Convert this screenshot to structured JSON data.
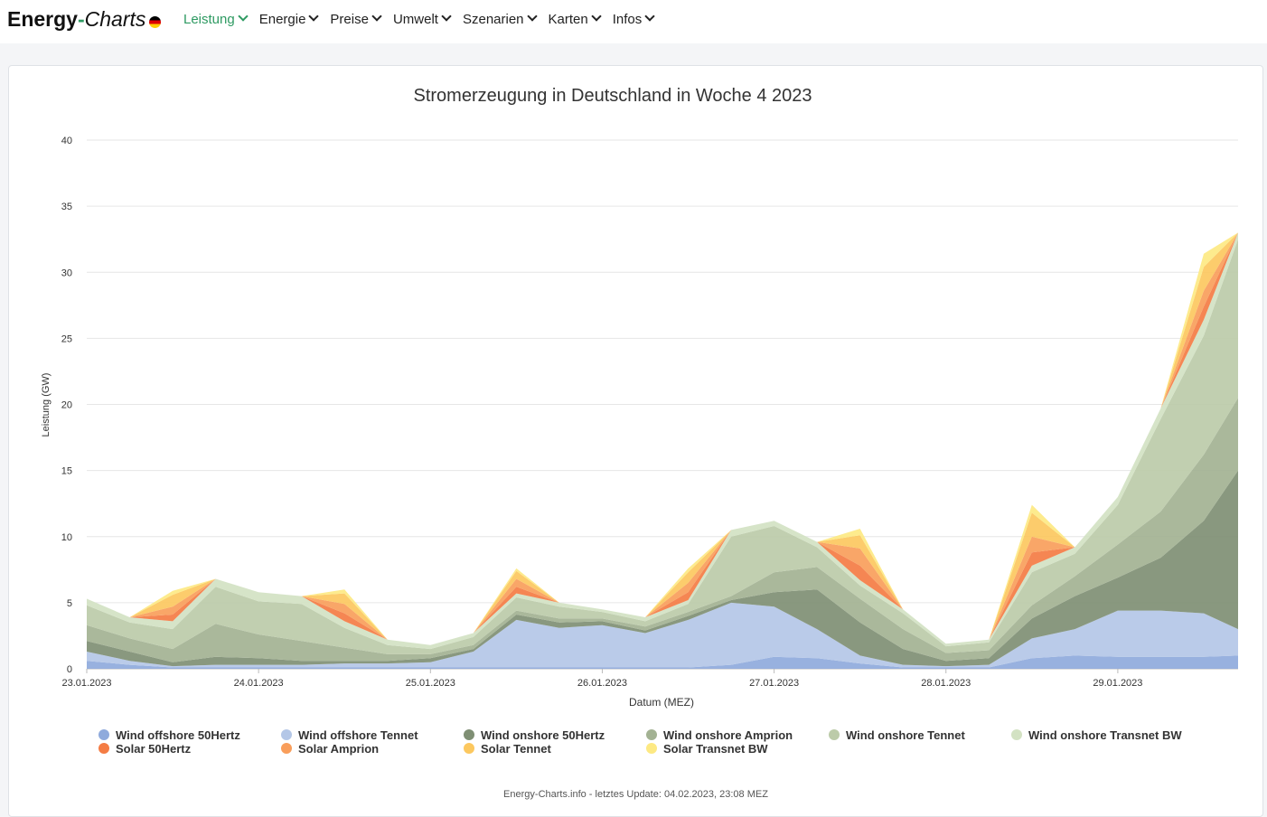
{
  "header": {
    "logo_main": "Energy",
    "logo_dash": "-",
    "logo_italic": "Charts",
    "nav": [
      {
        "label": "Leistung"
      },
      {
        "label": "Energie"
      },
      {
        "label": "Preise"
      },
      {
        "label": "Umwelt"
      },
      {
        "label": "Szenarien"
      },
      {
        "label": "Karten"
      },
      {
        "label": "Infos"
      }
    ]
  },
  "footer": "Energy-Charts.info - letztes Update: 04.02.2023, 23:08 MEZ",
  "chart_data": {
    "type": "area",
    "stacked": true,
    "title": "Stromerzeugung in Deutschland in Woche 4 2023",
    "xlabel": "Datum (MEZ)",
    "ylabel": "Leistung (GW)",
    "ylim": [
      0,
      40
    ],
    "yticks": [
      0,
      5,
      10,
      15,
      20,
      25,
      30,
      35,
      40
    ],
    "xlim_days": [
      0,
      6.7
    ],
    "xticks": [
      {
        "day": 0,
        "label": "23.01.2023"
      },
      {
        "day": 1,
        "label": "24.01.2023"
      },
      {
        "day": 2,
        "label": "25.01.2023"
      },
      {
        "day": 3,
        "label": "26.01.2023"
      },
      {
        "day": 4,
        "label": "27.01.2023"
      },
      {
        "day": 5,
        "label": "28.01.2023"
      },
      {
        "day": 6,
        "label": "29.01.2023"
      }
    ],
    "x": [
      0,
      0.25,
      0.5,
      0.75,
      1,
      1.25,
      1.5,
      1.75,
      2,
      2.25,
      2.5,
      2.75,
      3,
      3.25,
      3.5,
      3.75,
      4,
      4.25,
      4.5,
      4.75,
      5,
      5.25,
      5.5,
      5.75,
      6,
      6.25,
      6.5,
      6.7
    ],
    "series": [
      {
        "name": "Wind offshore 50Hertz",
        "color": "#8faadc",
        "values": [
          0.6,
          0.3,
          0.1,
          0.1,
          0.1,
          0.1,
          0.1,
          0.1,
          0.1,
          0.1,
          0.1,
          0.1,
          0.1,
          0.1,
          0.1,
          0.3,
          0.9,
          0.8,
          0.4,
          0.1,
          0.1,
          0.1,
          0.8,
          1.0,
          0.9,
          0.9,
          0.9,
          1.0
        ]
      },
      {
        "name": "Wind offshore Tennet",
        "color": "#b4c7e7",
        "values": [
          0.7,
          0.3,
          0.1,
          0.2,
          0.2,
          0.2,
          0.3,
          0.3,
          0.4,
          1.2,
          3.6,
          3.0,
          3.2,
          2.6,
          3.6,
          4.7,
          3.8,
          2.2,
          0.6,
          0.2,
          0.1,
          0.2,
          1.5,
          2.0,
          3.5,
          3.5,
          3.3,
          2.0
        ]
      },
      {
        "name": "Wind onshore 50Hertz",
        "color": "#7f8f74",
        "values": [
          0.8,
          0.7,
          0.3,
          0.6,
          0.5,
          0.3,
          0.2,
          0.2,
          0.3,
          0.2,
          0.4,
          0.4,
          0.3,
          0.2,
          0.3,
          0.2,
          1.1,
          3.0,
          2.5,
          1.2,
          0.4,
          0.5,
          1.5,
          2.5,
          2.5,
          4.0,
          7.0,
          12.0
        ]
      },
      {
        "name": "Wind onshore Amprion",
        "color": "#a3b293",
        "values": [
          1.2,
          1.0,
          1.0,
          2.5,
          1.8,
          1.5,
          1.0,
          0.5,
          0.3,
          0.3,
          0.3,
          0.3,
          0.2,
          0.3,
          0.3,
          0.3,
          1.5,
          1.7,
          1.8,
          1.5,
          0.6,
          0.6,
          1.0,
          1.5,
          2.5,
          3.5,
          5.0,
          5.5
        ]
      },
      {
        "name": "Wind onshore Tennet",
        "color": "#bccba9",
        "values": [
          1.5,
          1.2,
          1.5,
          2.8,
          2.5,
          2.8,
          1.5,
          0.7,
          0.4,
          0.6,
          1.0,
          0.9,
          0.5,
          0.4,
          0.6,
          4.5,
          3.5,
          1.5,
          1.0,
          1.2,
          0.5,
          0.6,
          2.5,
          1.7,
          3.0,
          7.0,
          9.0,
          12.0
        ]
      },
      {
        "name": "Wind onshore Transnet BW",
        "color": "#d3e2c3",
        "values": [
          0.5,
          0.4,
          0.6,
          0.6,
          0.7,
          0.6,
          0.5,
          0.4,
          0.3,
          0.3,
          0.3,
          0.3,
          0.2,
          0.3,
          0.3,
          0.5,
          0.4,
          0.4,
          0.4,
          0.3,
          0.2,
          0.2,
          0.5,
          0.5,
          0.6,
          0.8,
          1.2,
          0.5
        ]
      },
      {
        "name": "Solar 50Hertz",
        "color": "#f47c44",
        "values": [
          0,
          0,
          0.5,
          0,
          0,
          0,
          0.6,
          0,
          0,
          0,
          0.5,
          0,
          0,
          0,
          0.6,
          0,
          0,
          0,
          1.1,
          0,
          0,
          0,
          1.0,
          0,
          0,
          0,
          1.0,
          0
        ]
      },
      {
        "name": "Solar Amprion",
        "color": "#f99e5b",
        "values": [
          0,
          0,
          0.6,
          0,
          0,
          0,
          0.7,
          0,
          0,
          0,
          0.6,
          0,
          0,
          0,
          0.7,
          0,
          0,
          0,
          1.3,
          0,
          0,
          0,
          1.2,
          0,
          0,
          0,
          1.2,
          0
        ]
      },
      {
        "name": "Solar Tennet",
        "color": "#fcc85f",
        "values": [
          0,
          0,
          0.9,
          0,
          0,
          0,
          0.8,
          0,
          0,
          0,
          0.6,
          0,
          0,
          0,
          0.8,
          0,
          0,
          0,
          1.0,
          0,
          0,
          0,
          1.8,
          0,
          0,
          0,
          1.8,
          0
        ]
      },
      {
        "name": "Solar Transnet BW",
        "color": "#fde983",
        "values": [
          0,
          0,
          0.3,
          0,
          0,
          0,
          0.3,
          0,
          0,
          0,
          0.2,
          0,
          0,
          0,
          0.3,
          0,
          0,
          0,
          0.5,
          0,
          0,
          0,
          0.6,
          0,
          0,
          0,
          1.0,
          0
        ]
      }
    ]
  }
}
